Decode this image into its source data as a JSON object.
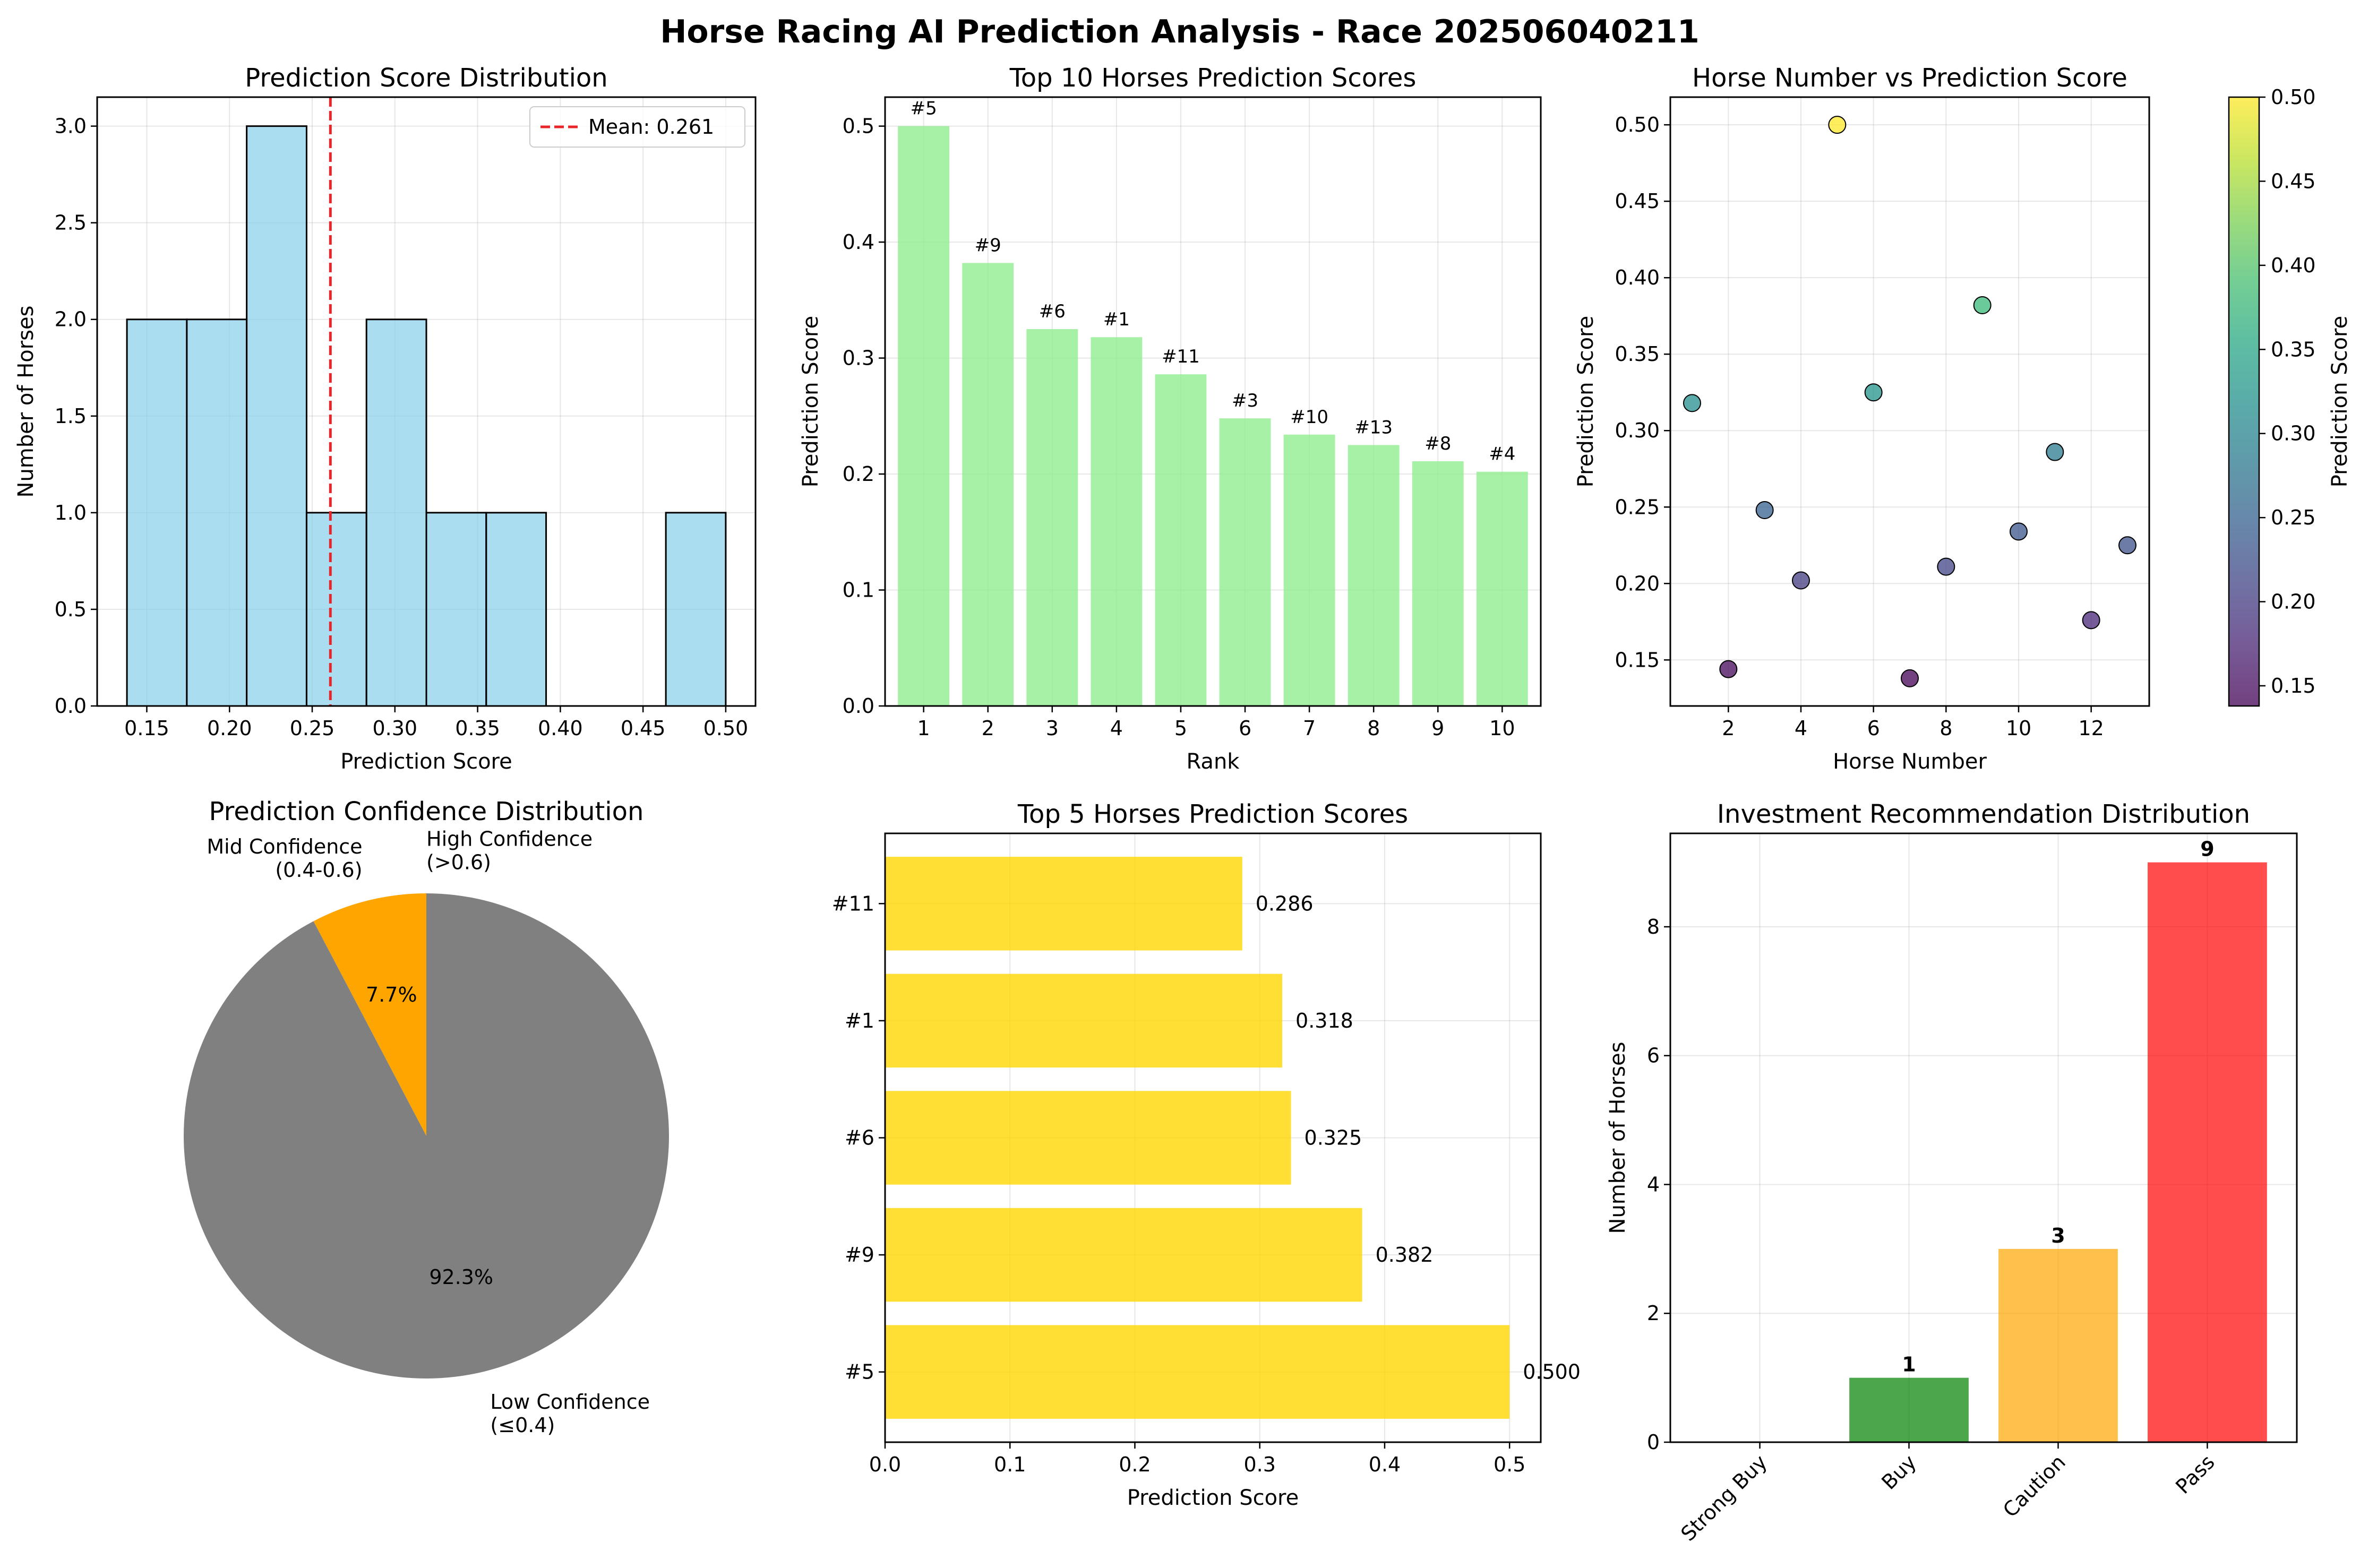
{
  "suptitle": "Horse Racing AI Prediction Analysis - Race 202506040211",
  "chart_data": [
    {
      "id": "hist",
      "type": "bar",
      "title": "Prediction Score Distribution",
      "xlabel": "Prediction Score",
      "ylabel": "Number of Horses",
      "bin_edges": [
        0.138,
        0.1742,
        0.2104,
        0.2466,
        0.2828,
        0.319,
        0.3552,
        0.3914,
        0.4276,
        0.4638,
        0.5
      ],
      "counts": [
        2,
        2,
        3,
        1,
        2,
        1,
        1,
        0,
        0,
        1
      ],
      "xlim": [
        0.12,
        0.518
      ],
      "ylim": [
        0,
        3.15
      ],
      "xticks": [
        0.15,
        0.2,
        0.25,
        0.3,
        0.35,
        0.4,
        0.45,
        0.5
      ],
      "xtick_labels": [
        "0.15",
        "0.20",
        "0.25",
        "0.30",
        "0.35",
        "0.40",
        "0.45",
        "0.50"
      ],
      "yticks": [
        0,
        0.5,
        1,
        1.5,
        2,
        2.5,
        3
      ],
      "ytick_labels": [
        "0.0",
        "0.5",
        "1.0",
        "1.5",
        "2.0",
        "2.5",
        "3.0"
      ],
      "mean": 0.261,
      "legend": "Mean: 0.261",
      "legend_position": "top-right",
      "bar_color": "#87ceeb",
      "mean_color": "#e8262a",
      "grid": true
    },
    {
      "id": "top10",
      "type": "bar",
      "title": "Top 10 Horses Prediction Scores",
      "xlabel": "Rank",
      "ylabel": "Prediction Score",
      "categories": [
        "1",
        "2",
        "3",
        "4",
        "5",
        "6",
        "7",
        "8",
        "9",
        "10"
      ],
      "values": [
        0.5,
        0.382,
        0.325,
        0.318,
        0.286,
        0.248,
        0.234,
        0.225,
        0.211,
        0.202
      ],
      "bar_labels": [
        "#5",
        "#9",
        "#6",
        "#1",
        "#11",
        "#3",
        "#10",
        "#13",
        "#8",
        "#4"
      ],
      "ylim": [
        0,
        0.525
      ],
      "yticks": [
        0,
        0.1,
        0.2,
        0.3,
        0.4,
        0.5
      ],
      "ytick_labels": [
        "0.0",
        "0.1",
        "0.2",
        "0.3",
        "0.4",
        "0.5"
      ],
      "bar_color": "#90ee90",
      "grid": true
    },
    {
      "id": "scatter",
      "type": "scatter",
      "title": "Horse Number vs Prediction Score",
      "xlabel": "Horse Number",
      "ylabel": "Prediction Score",
      "colorbar_label": "Prediction Score",
      "x": [
        1,
        2,
        3,
        4,
        5,
        6,
        7,
        8,
        9,
        10,
        11,
        12,
        13
      ],
      "y": [
        0.318,
        0.144,
        0.248,
        0.202,
        0.5,
        0.325,
        0.138,
        0.211,
        0.382,
        0.234,
        0.286,
        0.176,
        0.225
      ],
      "xlim": [
        0.4,
        13.6
      ],
      "ylim": [
        0.1199,
        0.5181
      ],
      "xticks": [
        2,
        4,
        6,
        8,
        10,
        12
      ],
      "xtick_labels": [
        "2",
        "4",
        "6",
        "8",
        "10",
        "12"
      ],
      "yticks": [
        0.15,
        0.2,
        0.25,
        0.3,
        0.35,
        0.4,
        0.45,
        0.5
      ],
      "ytick_labels": [
        "0.15",
        "0.20",
        "0.25",
        "0.30",
        "0.35",
        "0.40",
        "0.45",
        "0.50"
      ],
      "colorbar_range": [
        0.138,
        0.5
      ],
      "colorbar_ticks": [
        0.15,
        0.2,
        0.25,
        0.3,
        0.35,
        0.4,
        0.45,
        0.5
      ],
      "colorbar_tick_labels": [
        "0.15",
        "0.20",
        "0.25",
        "0.30",
        "0.35",
        "0.40",
        "0.45",
        "0.50"
      ],
      "colormap": "viridis",
      "grid": true
    },
    {
      "id": "pie",
      "type": "pie",
      "title": "Prediction Confidence Distribution",
      "slices": [
        {
          "label_lines": [
            "High Confidence",
            "(>0.6)"
          ],
          "value": 0.0,
          "pct": "0.0%",
          "color": "#008000"
        },
        {
          "label_lines": [
            "Mid Confidence",
            "(0.4-0.6)"
          ],
          "value": 7.7,
          "pct": "7.7%",
          "color": "#ffa500"
        },
        {
          "label_lines": [
            "Low Confidence",
            "(≤0.4)"
          ],
          "value": 92.3,
          "pct": "92.3%",
          "color": "#808080"
        }
      ]
    },
    {
      "id": "top5",
      "type": "bar",
      "orientation": "horizontal",
      "title": "Top 5 Horses Prediction Scores",
      "xlabel": "Prediction Score",
      "categories": [
        "#5",
        "#9",
        "#6",
        "#1",
        "#11"
      ],
      "values": [
        0.5,
        0.382,
        0.325,
        0.318,
        0.286
      ],
      "value_labels": [
        "0.500",
        "0.382",
        "0.325",
        "0.318",
        "0.286"
      ],
      "xlim": [
        0,
        0.525
      ],
      "xticks": [
        0,
        0.1,
        0.2,
        0.3,
        0.4,
        0.5
      ],
      "xtick_labels": [
        "0.0",
        "0.1",
        "0.2",
        "0.3",
        "0.4",
        "0.5"
      ],
      "bar_color": "#ffd700",
      "grid": true
    },
    {
      "id": "invest",
      "type": "bar",
      "title": "Investment Recommendation Distribution",
      "ylabel": "Number of Horses",
      "categories": [
        "Strong Buy",
        "Buy",
        "Caution",
        "Pass"
      ],
      "values": [
        0,
        1,
        3,
        9
      ],
      "value_labels": [
        "",
        "1",
        "3",
        "9"
      ],
      "colors": [
        "#006400",
        "#008000",
        "#ffa500",
        "#ff0000"
      ],
      "ylim": [
        0,
        9.45
      ],
      "yticks": [
        0,
        2,
        4,
        6,
        8
      ],
      "ytick_labels": [
        "0",
        "2",
        "4",
        "6",
        "8"
      ],
      "grid": true
    }
  ]
}
